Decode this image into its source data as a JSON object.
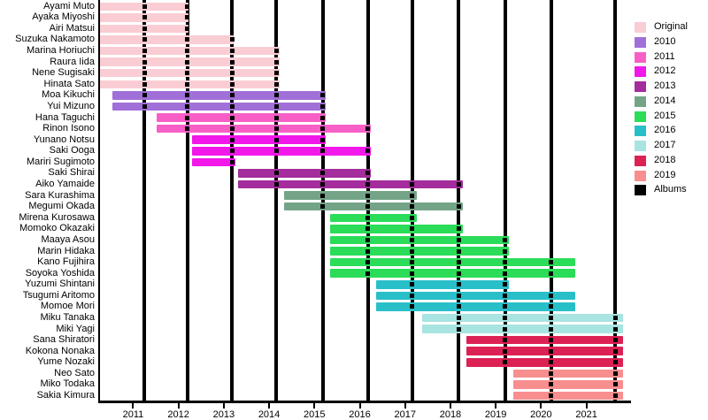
{
  "chart_data": {
    "type": "bar",
    "subtype": "membership_timeline_gantt",
    "x_axis": {
      "ticks": [
        2011,
        2012,
        2013,
        2014,
        2015,
        2016,
        2017,
        2018,
        2019,
        2020,
        2021
      ],
      "range": [
        2010.25,
        2021.96
      ],
      "grid": false
    },
    "legend_position": "top-right",
    "legend": [
      {
        "label": "Original",
        "color": "#F9CDD3"
      },
      {
        "label": "2010",
        "color": "#A070D8"
      },
      {
        "label": "2011",
        "color": "#F75FC7"
      },
      {
        "label": "2012",
        "color": "#F118E9"
      },
      {
        "label": "2013",
        "color": "#A42C9C"
      },
      {
        "label": "2014",
        "color": "#74A488"
      },
      {
        "label": "2015",
        "color": "#2BDC58"
      },
      {
        "label": "2016",
        "color": "#29BFC9"
      },
      {
        "label": "2017",
        "color": "#A8E4E1"
      },
      {
        "label": "2018",
        "color": "#DC2154"
      },
      {
        "label": "2019",
        "color": "#F98E8F"
      },
      {
        "label": "Albums",
        "color": "#000000"
      }
    ],
    "album_release_lines": [
      2011.25,
      2012.2,
      2013.18,
      2014.16,
      2015.18,
      2016.18,
      2017.16,
      2018.18,
      2019.21,
      2020.22,
      2021.64
    ],
    "members": [
      {
        "name": "Ayami Muto",
        "cohort": "Original",
        "start": 2010.25,
        "end": 2012.22
      },
      {
        "name": "Ayaka Miyoshi",
        "cohort": "Original",
        "start": 2010.25,
        "end": 2012.22
      },
      {
        "name": "Airi Matsui",
        "cohort": "Original",
        "start": 2010.25,
        "end": 2012.22
      },
      {
        "name": "Suzuka Nakamoto",
        "cohort": "Original",
        "start": 2010.25,
        "end": 2013.22
      },
      {
        "name": "Marina Horiuchi",
        "cohort": "Original",
        "start": 2010.25,
        "end": 2014.24
      },
      {
        "name": "Raura Iida",
        "cohort": "Original",
        "start": 2010.25,
        "end": 2014.24
      },
      {
        "name": "Nene Sugisaki",
        "cohort": "Original",
        "start": 2010.25,
        "end": 2014.24
      },
      {
        "name": "Hinata Sato",
        "cohort": "Original",
        "start": 2010.25,
        "end": 2014.24
      },
      {
        "name": "Moa Kikuchi",
        "cohort": "2010",
        "start": 2010.54,
        "end": 2015.24
      },
      {
        "name": "Yui Mizuno",
        "cohort": "2010",
        "start": 2010.54,
        "end": 2015.24
      },
      {
        "name": "Hana Taguchi",
        "cohort": "2011",
        "start": 2011.52,
        "end": 2015.24
      },
      {
        "name": "Rinon Isono",
        "cohort": "2011",
        "start": 2011.52,
        "end": 2016.24
      },
      {
        "name": "Yunano Notsu",
        "cohort": "2012",
        "start": 2012.3,
        "end": 2015.24
      },
      {
        "name": "Saki Ooga",
        "cohort": "2012",
        "start": 2012.3,
        "end": 2016.24
      },
      {
        "name": "Mariri Sugimoto",
        "cohort": "2012",
        "start": 2012.3,
        "end": 2013.25
      },
      {
        "name": "Saki Shirai",
        "cohort": "2013",
        "start": 2013.32,
        "end": 2016.24
      },
      {
        "name": "Aiko Yamaide",
        "cohort": "2013",
        "start": 2013.32,
        "end": 2018.27
      },
      {
        "name": "Sara Kurashima",
        "cohort": "2014",
        "start": 2014.34,
        "end": 2017.26
      },
      {
        "name": "Megumi Okada",
        "cohort": "2014",
        "start": 2014.34,
        "end": 2018.27
      },
      {
        "name": "Mirena Kurosawa",
        "cohort": "2015",
        "start": 2015.34,
        "end": 2017.26
      },
      {
        "name": "Momoko Okazaki",
        "cohort": "2015",
        "start": 2015.34,
        "end": 2018.27
      },
      {
        "name": "Maaya Asou",
        "cohort": "2015",
        "start": 2015.34,
        "end": 2019.29
      },
      {
        "name": "Marin Hidaka",
        "cohort": "2015",
        "start": 2015.34,
        "end": 2019.29
      },
      {
        "name": "Kano Fujihira",
        "cohort": "2015",
        "start": 2015.34,
        "end": 2020.75
      },
      {
        "name": "Soyoka Yoshida",
        "cohort": "2015",
        "start": 2015.34,
        "end": 2020.75
      },
      {
        "name": "Yuzumi Shintani",
        "cohort": "2016",
        "start": 2016.36,
        "end": 2019.29
      },
      {
        "name": "Tsugumi Aritomo",
        "cohort": "2016",
        "start": 2016.36,
        "end": 2020.75
      },
      {
        "name": "Momoe Mori",
        "cohort": "2016",
        "start": 2016.36,
        "end": 2020.75
      },
      {
        "name": "Miku Tanaka",
        "cohort": "2017",
        "start": 2017.38,
        "end": 2021.8
      },
      {
        "name": "Miki Yagi",
        "cohort": "2017",
        "start": 2017.38,
        "end": 2021.8
      },
      {
        "name": "Sana Shiratori",
        "cohort": "2018",
        "start": 2018.35,
        "end": 2021.8
      },
      {
        "name": "Kokona Nonaka",
        "cohort": "2018",
        "start": 2018.35,
        "end": 2021.8
      },
      {
        "name": "Yume Nozaki",
        "cohort": "2018",
        "start": 2018.35,
        "end": 2021.8
      },
      {
        "name": "Neo Sato",
        "cohort": "2019",
        "start": 2019.38,
        "end": 2021.8
      },
      {
        "name": "Miko Todaka",
        "cohort": "2019",
        "start": 2019.38,
        "end": 2021.8
      },
      {
        "name": "Sakia Kimura",
        "cohort": "2019",
        "start": 2019.38,
        "end": 2021.8
      }
    ]
  }
}
